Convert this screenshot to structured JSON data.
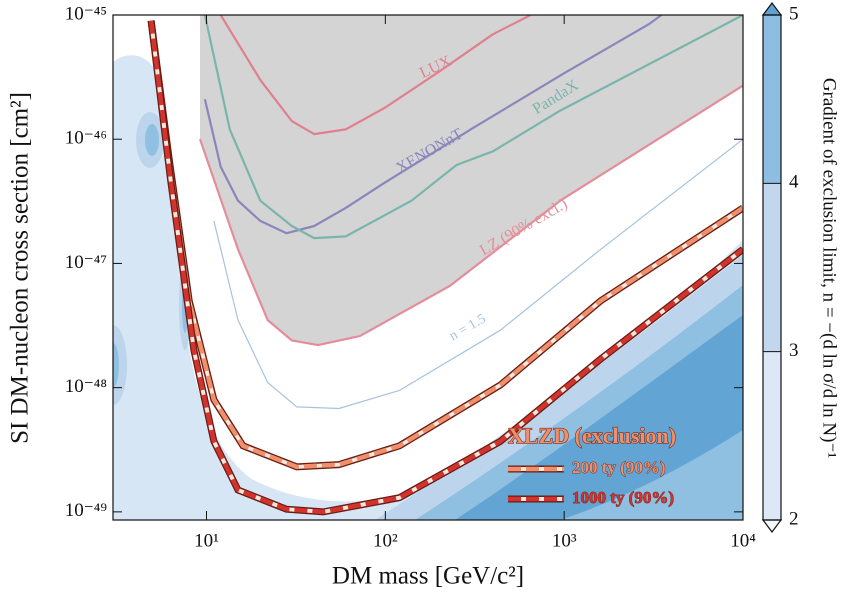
{
  "chart_data": {
    "type": "line",
    "xlabel": "DM mass [GeV/c²]",
    "ylabel": "SI DM-nucleon cross section [cm²]",
    "log_x": true,
    "log_y": true,
    "xlim": [
      3,
      10000
    ],
    "ylim": [
      8.6e-50,
      1e-45
    ],
    "xticks": [
      {
        "value": 10,
        "label": "10¹"
      },
      {
        "value": 100,
        "label": "10²"
      },
      {
        "value": 1000,
        "label": "10³"
      },
      {
        "value": 10000,
        "label": "10⁴"
      }
    ],
    "yticks": [
      {
        "value": 1e-45,
        "label": "10⁻⁴⁵"
      },
      {
        "value": 1e-46,
        "label": "10⁻⁴⁶"
      },
      {
        "value": 1e-47,
        "label": "10⁻⁴⁷"
      },
      {
        "value": 1e-48,
        "label": "10⁻⁴⁸"
      },
      {
        "value": 1e-49,
        "label": "10⁻⁴⁹"
      }
    ],
    "excluded_color": "#d4d4d4",
    "series": [
      {
        "name": "LUX",
        "color": "#e0808e",
        "style": "solid",
        "x": [
          12,
          20,
          30,
          40,
          60,
          100,
          200,
          400,
          650
        ],
        "y": [
          1e-45,
          3e-46,
          1.4e-46,
          1.1e-46,
          1.2e-46,
          1.8e-46,
          3.5e-46,
          7e-46,
          1e-45
        ]
      },
      {
        "name": "XENONnT",
        "color": "#8a86bb",
        "style": "solid",
        "x": [
          9.8,
          12,
          15,
          20,
          28,
          40,
          60,
          100,
          300,
          1000,
          3000,
          3500
        ],
        "y": [
          2.1e-46,
          6e-47,
          3.2e-47,
          2.2e-47,
          1.75e-47,
          2e-47,
          2.8e-47,
          4.5e-47,
          1.2e-46,
          3.4e-46,
          8.5e-46,
          1e-45
        ]
      },
      {
        "name": "PandaX",
        "color": "#7ab5ac",
        "style": "solid",
        "x": [
          9.8,
          13.5,
          20,
          30,
          40,
          60,
          140,
          250,
          400,
          950,
          10000
        ],
        "y": [
          1e-45,
          1.2e-46,
          3.2e-47,
          2e-47,
          1.6e-47,
          1.65e-47,
          3.2e-47,
          6.2e-47,
          8e-47,
          1.7e-46,
          1e-45
        ]
      },
      {
        "name": "LZ (90% excl.)",
        "color": "#e48d9a",
        "style": "solid",
        "excluded": true,
        "x": [
          9.2,
          15,
          22,
          30,
          42,
          72,
          230,
          950,
          10000
        ],
        "y": [
          1e-46,
          1.3e-47,
          3.5e-48,
          2.4e-48,
          2.2e-48,
          2.6e-48,
          6.6e-48,
          3.2e-47,
          2.7e-46
        ]
      },
      {
        "name": "n = 1.5",
        "color": "#a6c3e0",
        "style": "thin",
        "x": [
          11,
          15,
          22,
          32,
          55,
          120,
          440,
          1600,
          10000
        ],
        "y": [
          2.2e-47,
          3.5e-48,
          1.1e-48,
          7e-49,
          6.8e-49,
          9.5e-49,
          2.9e-48,
          1.3e-47,
          1e-46
        ]
      },
      {
        "name": "200 ty (90%)",
        "color": "#ef906c",
        "style": "dashed",
        "legend": true,
        "x": [
          4.9,
          6.2,
          8,
          11,
          16,
          32,
          55,
          120,
          440,
          1600,
          10000
        ],
        "y": [
          9e-46,
          6.7e-47,
          5e-48,
          8e-49,
          3.4e-49,
          2.3e-49,
          2.4e-49,
          3.4e-49,
          1.05e-48,
          5e-48,
          2.8e-47
        ]
      },
      {
        "name": "1000 ty (90%)",
        "color": "#d2332e",
        "style": "dashed",
        "legend": true,
        "x": [
          4.9,
          6.3,
          8.5,
          11,
          15,
          28,
          45,
          120,
          440,
          1600,
          10000
        ],
        "y": [
          9e-46,
          4.7e-47,
          2e-48,
          3.7e-49,
          1.5e-49,
          1.05e-49,
          1e-49,
          1.3e-49,
          3.7e-49,
          1.7e-48,
          1.3e-47
        ]
      }
    ],
    "legend_title": "XLZD (exclusion)",
    "legend": "lower right",
    "colorbar": {
      "label": "Gradient of exclusion limit, n = −(d ln σ/d ln N)⁻¹",
      "lim": [
        2,
        5
      ],
      "ticks": [
        2,
        3,
        4,
        5
      ],
      "colors": [
        "#dce8f5",
        "#c2d7ed",
        "#8dbee1"
      ],
      "over_color": "#5ea3d3",
      "under_color": "#f4f8fc"
    }
  }
}
